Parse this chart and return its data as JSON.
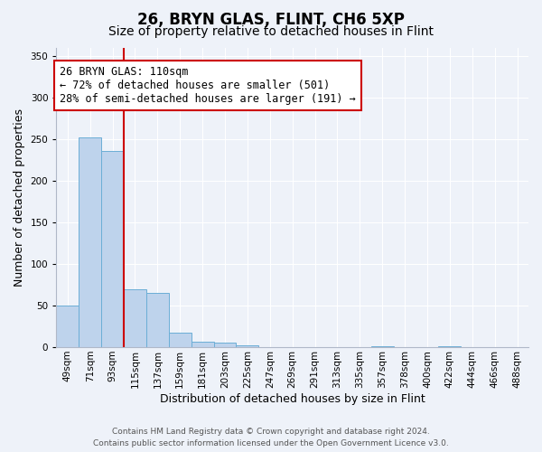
{
  "title": "26, BRYN GLAS, FLINT, CH6 5XP",
  "subtitle": "Size of property relative to detached houses in Flint",
  "xlabel": "Distribution of detached houses by size in Flint",
  "ylabel": "Number of detached properties",
  "bin_labels": [
    "49sqm",
    "71sqm",
    "93sqm",
    "115sqm",
    "137sqm",
    "159sqm",
    "181sqm",
    "203sqm",
    "225sqm",
    "247sqm",
    "269sqm",
    "291sqm",
    "313sqm",
    "335sqm",
    "357sqm",
    "378sqm",
    "400sqm",
    "422sqm",
    "444sqm",
    "466sqm",
    "488sqm"
  ],
  "bar_heights": [
    50,
    252,
    236,
    70,
    65,
    17,
    7,
    5,
    2,
    0,
    0,
    0,
    0,
    0,
    1,
    0,
    0,
    1,
    0,
    0,
    0
  ],
  "bar_color": "#bed3ec",
  "bar_edgecolor": "#6baed6",
  "vline_x": 3,
  "vline_color": "#cc0000",
  "annotation_text": "26 BRYN GLAS: 110sqm\n← 72% of detached houses are smaller (501)\n28% of semi-detached houses are larger (191) →",
  "annotation_box_color": "#ffffff",
  "annotation_box_edgecolor": "#cc0000",
  "ylim": [
    0,
    360
  ],
  "yticks": [
    0,
    50,
    100,
    150,
    200,
    250,
    300,
    350
  ],
  "footer_line1": "Contains HM Land Registry data © Crown copyright and database right 2024.",
  "footer_line2": "Contains public sector information licensed under the Open Government Licence v3.0.",
  "background_color": "#eef2f9",
  "grid_color": "#ffffff",
  "title_fontsize": 12,
  "subtitle_fontsize": 10,
  "axis_label_fontsize": 9,
  "tick_fontsize": 7.5,
  "annotation_fontsize": 8.5,
  "footer_fontsize": 6.5
}
